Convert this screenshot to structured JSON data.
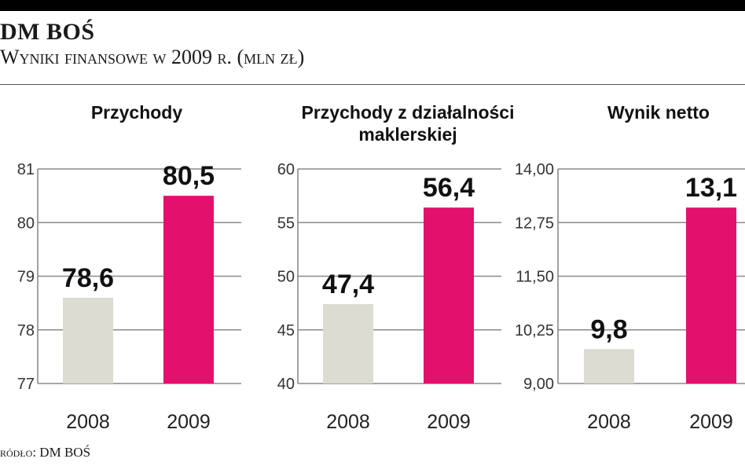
{
  "header": {
    "title": "DM BOŚ",
    "subtitle": "Wyniki finansowe w 2009 r. (mln zł)"
  },
  "source": "ródło: DM BOŚ",
  "colors": {
    "bar_2008": "#dcdcd2",
    "bar_2009": "#e2116d",
    "rule": "#555555"
  },
  "chart_data": [
    {
      "type": "bar",
      "title_lines": [
        "Przychody"
      ],
      "categories": [
        "2008",
        "2009"
      ],
      "values": [
        78.6,
        80.5
      ],
      "value_labels": [
        "78,6",
        "80,5"
      ],
      "ylim": [
        77,
        81
      ],
      "yticks": [
        "77",
        "78",
        "79",
        "80",
        "81"
      ],
      "grid": true
    },
    {
      "type": "bar",
      "title_lines": [
        "Przychody z działalności",
        "maklerskiej"
      ],
      "categories": [
        "2008",
        "2009"
      ],
      "values": [
        47.4,
        56.4
      ],
      "value_labels": [
        "47,4",
        "56,4"
      ],
      "ylim": [
        40,
        60
      ],
      "yticks": [
        "40",
        "45",
        "50",
        "55",
        "60"
      ],
      "grid": true
    },
    {
      "type": "bar",
      "title_lines": [
        "Wynik netto"
      ],
      "categories": [
        "2008",
        "2009"
      ],
      "values": [
        9.8,
        13.1
      ],
      "value_labels": [
        "9,8",
        "13,1"
      ],
      "ylim": [
        9,
        14
      ],
      "yticks": [
        "9,00",
        "10,25",
        "11,50",
        "12,75",
        "14,00"
      ],
      "grid": true
    }
  ]
}
